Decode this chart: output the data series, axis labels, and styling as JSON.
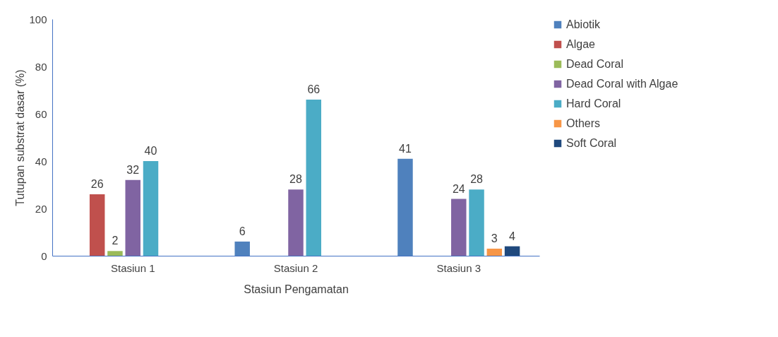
{
  "chart_data": {
    "type": "bar",
    "xlabel": "Stasiun Pengamatan",
    "ylabel": "Tutupan substrat dasar (%)",
    "categories": [
      "Stasiun 1",
      "Stasiun 2",
      "Stasiun 3"
    ],
    "series": [
      {
        "name": "Abiotik",
        "color": "#4f81bd",
        "values": [
          null,
          6,
          41
        ]
      },
      {
        "name": "Algae",
        "color": "#c0504d",
        "values": [
          26,
          null,
          null
        ]
      },
      {
        "name": "Dead Coral",
        "color": "#9bbb59",
        "values": [
          2,
          null,
          null
        ]
      },
      {
        "name": "Dead Coral with Algae",
        "color": "#8064a2",
        "values": [
          32,
          28,
          24
        ]
      },
      {
        "name": "Hard Coral",
        "color": "#4bacc6",
        "values": [
          40,
          66,
          28
        ]
      },
      {
        "name": "Others",
        "color": "#f79646",
        "values": [
          null,
          null,
          3
        ]
      },
      {
        "name": "Soft Coral",
        "color": "#1f497d",
        "values": [
          null,
          null,
          4
        ]
      }
    ],
    "ylim": [
      0,
      100
    ],
    "yticks": [
      0,
      20,
      40,
      60,
      80,
      100
    ],
    "grid": false,
    "legend": "right",
    "data_labels": true
  }
}
